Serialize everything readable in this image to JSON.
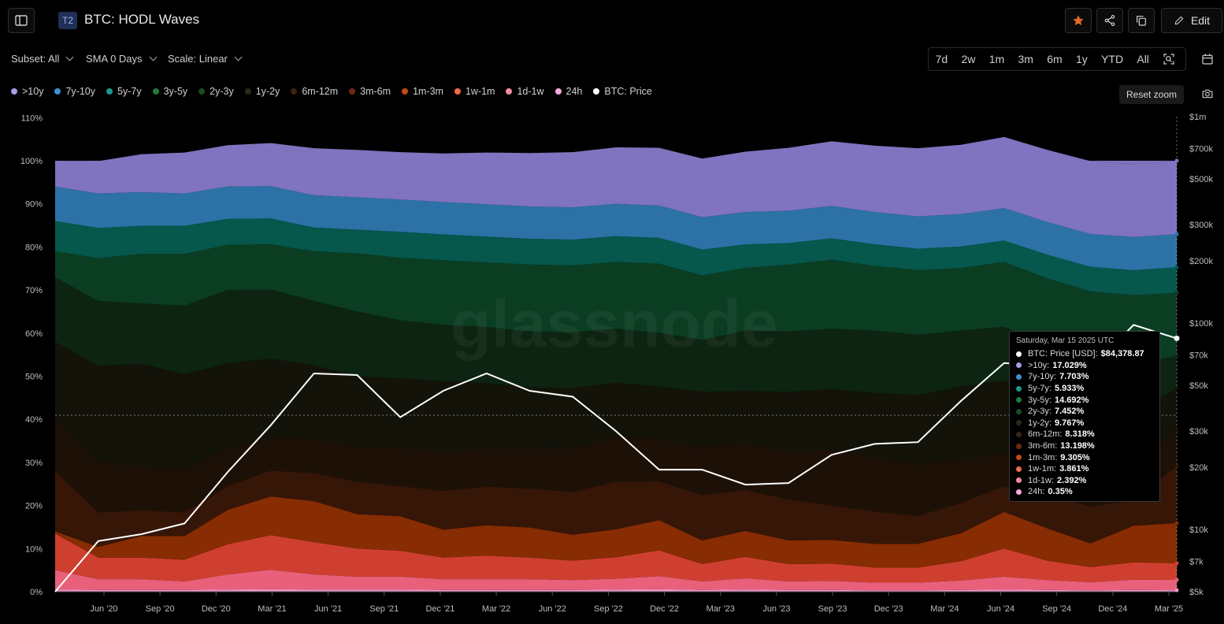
{
  "header": {
    "badge": "T2",
    "title": "BTC: HODL Waves",
    "edit_label": "Edit"
  },
  "controls": {
    "subset": "Subset: All",
    "sma": "SMA 0 Days",
    "scale": "Scale: Linear",
    "ranges": [
      "7d",
      "2w",
      "1m",
      "3m",
      "6m",
      "1y",
      "YTD",
      "All"
    ],
    "reset_zoom": "Reset zoom"
  },
  "colors": {
    "10y": "#8073bf",
    "7y": "#2c72a6",
    "5y": "#06574c",
    "3y": "#0b3d22",
    "2y": "#0c2411",
    "1y": "#131309",
    "6m": "#1d1107",
    "3m": "#361607",
    "1m": "#872c03",
    "1w": "#cf3f30",
    "1d": "#e8607a",
    "24h": "#f294cb",
    "price": "#ffffff"
  },
  "legend": [
    {
      "label": ">10y",
      "color": "#a59be6"
    },
    {
      "label": "7y-10y",
      "color": "#3d8fd0"
    },
    {
      "label": "5y-7y",
      "color": "#1a9a8a"
    },
    {
      "label": "3y-5y",
      "color": "#1e7a3c"
    },
    {
      "label": "2y-3y",
      "color": "#1d4a22"
    },
    {
      "label": "1y-2y",
      "color": "#2a2a18"
    },
    {
      "label": "6m-12m",
      "color": "#3a2512"
    },
    {
      "label": "3m-6m",
      "color": "#6a2c10"
    },
    {
      "label": "1m-3m",
      "color": "#c04a12"
    },
    {
      "label": "1w-1m",
      "color": "#f06a48"
    },
    {
      "label": "1d-1w",
      "color": "#f28aa0"
    },
    {
      "label": "24h",
      "color": "#f7a8e0"
    },
    {
      "label": "BTC: Price",
      "color": "#ffffff"
    }
  ],
  "watermark": "glassnode",
  "tooltip": {
    "date": "Saturday, Mar 15 2025 UTC",
    "rows": [
      {
        "label": "BTC: Price [USD]:",
        "value": "$84,378.87",
        "color": "#ffffff"
      },
      {
        "label": ">10y:",
        "value": "17.029%",
        "color": "#a59be6"
      },
      {
        "label": "7y-10y:",
        "value": "7.703%",
        "color": "#3d8fd0"
      },
      {
        "label": "5y-7y:",
        "value": "5.933%",
        "color": "#1a9a8a"
      },
      {
        "label": "3y-5y:",
        "value": "14.692%",
        "color": "#1e7a3c"
      },
      {
        "label": "2y-3y:",
        "value": "7.452%",
        "color": "#1d4a22"
      },
      {
        "label": "1y-2y:",
        "value": "9.767%",
        "color": "#2a2a18"
      },
      {
        "label": "6m-12m:",
        "value": "8.318%",
        "color": "#3a2512"
      },
      {
        "label": "3m-6m:",
        "value": "13.198%",
        "color": "#6a2c10"
      },
      {
        "label": "1m-3m:",
        "value": "9.305%",
        "color": "#c04a12"
      },
      {
        "label": "1w-1m:",
        "value": "3.861%",
        "color": "#f06a48"
      },
      {
        "label": "1d-1w:",
        "value": "2.392%",
        "color": "#f28aa0"
      },
      {
        "label": "24h:",
        "value": "0.35%",
        "color": "#f7a8e0"
      }
    ]
  },
  "chart_data": {
    "type": "area",
    "stacked": true,
    "x": [
      "Mar '20",
      "Apr '20",
      "Jun '20",
      "Sep '20",
      "Dec '20",
      "Jan '21",
      "Mar '21",
      "Apr '21",
      "Jun '21",
      "Sep '21",
      "Nov '21",
      "Dec '21",
      "Mar '22",
      "May '22",
      "Jun '22",
      "Sep '22",
      "Nov '22",
      "Dec '22",
      "Mar '23",
      "Jun '23",
      "Sep '23",
      "Dec '23",
      "Mar '24",
      "Jun '24",
      "Sep '24",
      "Dec '24",
      "Mar '25"
    ],
    "x_ticks": [
      "Jun '20",
      "Sep '20",
      "Dec '20",
      "Mar '21",
      "Jun '21",
      "Sep '21",
      "Dec '21",
      "Mar '22",
      "Jun '22",
      "Sep '22",
      "Dec '22",
      "Mar '23",
      "Jun '23",
      "Sep '23",
      "Dec '23",
      "Mar '24",
      "Jun '24",
      "Sep '24",
      "Dec '24",
      "Mar '25"
    ],
    "y_ticks": [
      "0%",
      "10%",
      "20%",
      "30%",
      "40%",
      "50%",
      "60%",
      "70%",
      "80%",
      "90%",
      "100%",
      "110%"
    ],
    "ylim": [
      0,
      110
    ],
    "y2_ticks": [
      "$5k",
      "$7k",
      "$10k",
      "$20k",
      "$30k",
      "$50k",
      "$70k",
      "$100k",
      "$200k",
      "$300k",
      "$500k",
      "$700k",
      "$1m"
    ],
    "y2_values": [
      5000,
      7000,
      10000,
      20000,
      30000,
      50000,
      70000,
      100000,
      200000,
      300000,
      500000,
      700000,
      1000000
    ],
    "y2_scale": "log",
    "y2lim": [
      5000,
      1000000
    ],
    "series": [
      {
        "name": "24h",
        "key": "24h",
        "values": [
          0.5,
          0.4,
          0.4,
          0.4,
          0.5,
          0.6,
          0.5,
          0.5,
          0.5,
          0.4,
          0.4,
          0.4,
          0.4,
          0.5,
          0.6,
          0.4,
          0.5,
          0.4,
          0.4,
          0.3,
          0.3,
          0.4,
          0.5,
          0.4,
          0.3,
          0.4,
          0.35
        ]
      },
      {
        "name": "1d-1w",
        "key": "1d",
        "values": [
          4.5,
          2.5,
          2.5,
          2.0,
          3.5,
          4.5,
          3.5,
          3.0,
          3.0,
          2.5,
          2.5,
          2.5,
          2.3,
          2.5,
          3.0,
          2.0,
          2.6,
          2.0,
          2.1,
          1.8,
          1.8,
          2.2,
          3.0,
          2.3,
          1.9,
          2.4,
          2.39
        ]
      },
      {
        "name": "1w-1m",
        "key": "1w",
        "values": [
          8.5,
          5.0,
          5.0,
          5.0,
          7.0,
          8.0,
          7.5,
          6.5,
          6.0,
          5.0,
          5.5,
          5.0,
          4.5,
          5.0,
          6.0,
          4.0,
          5.0,
          4.0,
          4.0,
          3.5,
          3.5,
          4.5,
          6.5,
          4.5,
          3.5,
          4.0,
          3.86
        ]
      },
      {
        "name": "1m-3m",
        "key": "1m",
        "values": [
          0.5,
          2.5,
          5.0,
          5.5,
          8.0,
          9.0,
          9.5,
          8.0,
          8.0,
          6.5,
          7.0,
          7.0,
          6.0,
          6.5,
          7.0,
          5.5,
          6.0,
          5.5,
          5.5,
          5.5,
          5.5,
          6.5,
          8.5,
          7.5,
          5.5,
          8.5,
          9.3
        ]
      },
      {
        "name": "3m-6m",
        "key": "3m",
        "values": [
          14,
          8,
          6,
          5.5,
          5.5,
          6,
          6.5,
          7.5,
          7,
          9,
          9,
          9,
          10,
          11,
          9,
          10.5,
          9.5,
          9.5,
          8,
          7.5,
          6.5,
          7,
          6,
          8,
          8.5,
          6,
          13.2
        ]
      },
      {
        "name": "6m-12m",
        "key": "6m",
        "values": [
          12,
          12,
          10,
          10,
          8.5,
          7.5,
          8,
          8,
          9,
          9,
          9,
          9.5,
          10,
          10.5,
          10,
          11,
          11,
          11,
          13,
          12.5,
          12,
          10,
          7.5,
          6.5,
          8,
          8.5,
          8.32
        ]
      },
      {
        "name": "1y-2y",
        "key": "1y",
        "values": [
          18,
          22,
          24,
          22,
          20,
          18.5,
          17,
          16.5,
          16,
          16.5,
          15,
          14,
          14,
          12.5,
          12,
          13,
          12,
          14,
          14,
          15,
          16,
          17,
          17,
          16,
          14,
          12,
          9.77
        ]
      },
      {
        "name": "2y-3y",
        "key": "2y",
        "values": [
          15,
          15,
          14,
          16,
          17,
          16,
          15,
          15,
          13.5,
          13,
          13,
          13,
          13,
          12.5,
          12.5,
          12,
          14,
          14,
          14,
          14.5,
          14,
          13,
          12.5,
          12,
          12,
          11,
          7.45
        ]
      },
      {
        "name": "3y-5y",
        "key": "3y",
        "values": [
          6,
          10,
          11.5,
          12,
          10.5,
          10.5,
          11.5,
          13.5,
          14.5,
          15,
          15,
          15.5,
          15.5,
          15.5,
          16,
          15,
          14.5,
          15.5,
          16,
          15,
          15,
          14.5,
          15,
          15.5,
          16,
          16,
          14.69
        ]
      },
      {
        "name": "5y-7y",
        "key": "5y",
        "values": [
          7,
          7,
          6.5,
          6.5,
          6,
          6,
          5.5,
          5.5,
          6,
          6,
          6,
          6,
          6,
          6,
          6,
          6,
          5.5,
          5,
          5,
          5,
          5,
          5,
          5,
          5.5,
          5.7,
          5.8,
          5.93
        ]
      },
      {
        "name": "7y-10y",
        "key": "7y",
        "values": [
          8,
          8,
          7.8,
          7.5,
          7.5,
          7.5,
          7.5,
          7.5,
          7.5,
          7.5,
          7.5,
          7.5,
          7.5,
          7.5,
          7.5,
          7.5,
          7.5,
          7.5,
          7.5,
          7.5,
          7.5,
          7.5,
          7.5,
          7.6,
          7.6,
          7.7,
          7.7
        ]
      },
      {
        "name": ">10y",
        "key": "10y",
        "values": [
          6,
          7.5,
          8.8,
          9.5,
          9.6,
          10,
          10.9,
          11,
          11,
          11.3,
          12,
          12.4,
          12.8,
          13.1,
          13.4,
          13.6,
          14,
          14.6,
          15,
          15.4,
          15.8,
          16.1,
          16.5,
          16.7,
          16.9,
          16.9,
          17.03
        ]
      },
      {
        "name": "BTC: Price",
        "key": "price",
        "axis": "right",
        "values": [
          5000,
          8800,
          9500,
          10700,
          19000,
          32000,
          57000,
          56000,
          35000,
          47000,
          57000,
          47000,
          44000,
          30000,
          19500,
          19500,
          16500,
          16800,
          23000,
          26000,
          26500,
          42000,
          64000,
          62000,
          60000,
          98000,
          84378.87
        ]
      }
    ]
  }
}
